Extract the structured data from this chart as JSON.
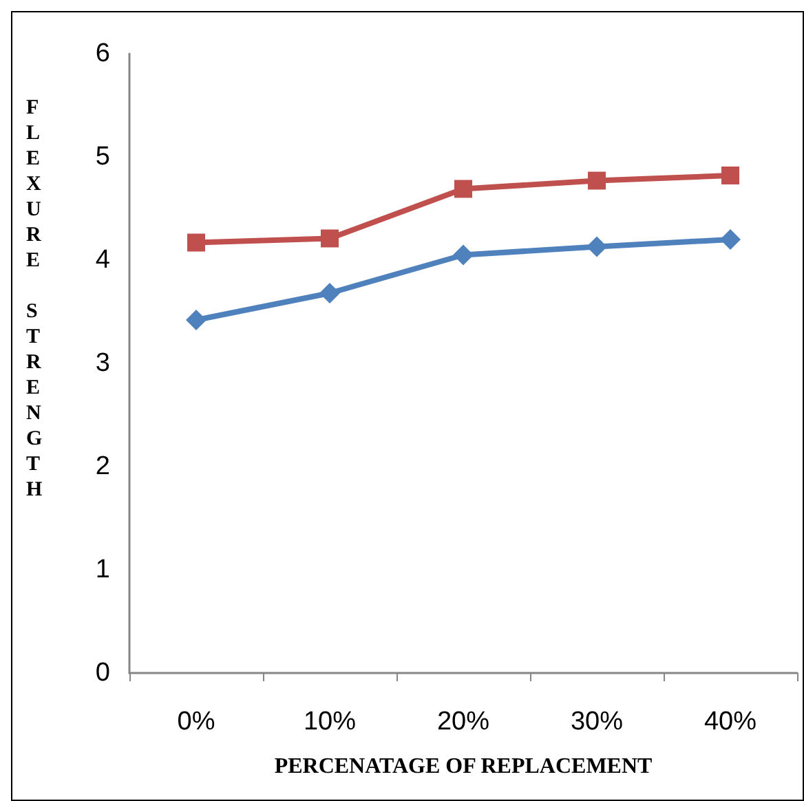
{
  "chart_data": {
    "type": "line",
    "xlabel": "PERCENATAGE OF REPLACEMENT",
    "ylabel": "FLEXURE STRENGTH",
    "categories": [
      "0%",
      "10%",
      "20%",
      "30%",
      "40%"
    ],
    "series": [
      {
        "color": "#4f81bd",
        "marker": "diamond",
        "values": [
          3.42,
          3.68,
          4.05,
          4.13,
          4.2
        ]
      },
      {
        "color": "#c0504d",
        "marker": "square",
        "values": [
          4.17,
          4.21,
          4.69,
          4.77,
          4.82
        ]
      }
    ],
    "ylim": [
      0,
      6
    ],
    "yticks": [
      0,
      1,
      2,
      3,
      4,
      5,
      6
    ],
    "grid": false,
    "line_style": "solid"
  }
}
